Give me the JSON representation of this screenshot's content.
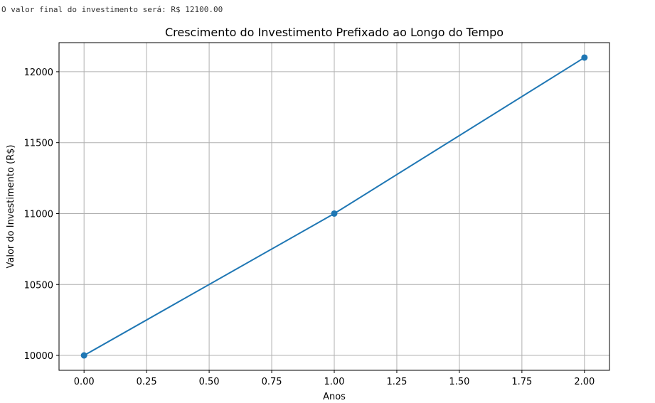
{
  "console": {
    "output": "O valor final do investimento será: R$ 12100.00"
  },
  "chart_data": {
    "type": "line",
    "title": "Crescimento do Investimento Prefixado ao Longo do Tempo",
    "xlabel": "Anos",
    "ylabel": "Valor do Investimento (R$)",
    "x": [
      0,
      1,
      2
    ],
    "y": [
      10000,
      11000,
      12100
    ],
    "xlim": [
      -0.1,
      2.1
    ],
    "ylim": [
      9895,
      12205
    ],
    "xticks": [
      0.0,
      0.25,
      0.5,
      0.75,
      1.0,
      1.25,
      1.5,
      1.75,
      2.0
    ],
    "xtick_labels": [
      "0.00",
      "0.25",
      "0.50",
      "0.75",
      "1.00",
      "1.25",
      "1.50",
      "1.75",
      "2.00"
    ],
    "yticks": [
      10000,
      10500,
      11000,
      11500,
      12000
    ],
    "ytick_labels": [
      "10000",
      "10500",
      "11000",
      "11500",
      "12000"
    ],
    "grid": true,
    "marker": "circle",
    "line_color": "#1f77b4",
    "grid_color": "#b0b0b0"
  }
}
